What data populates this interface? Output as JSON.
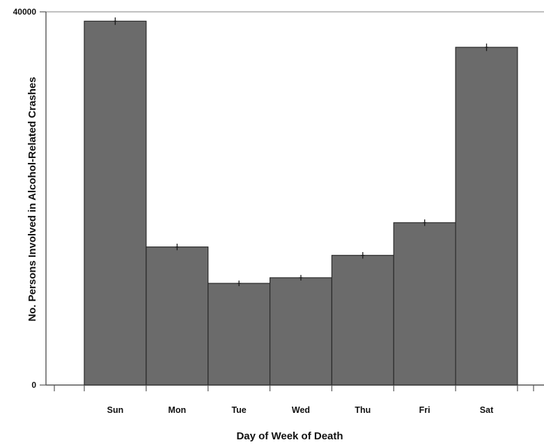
{
  "chart_data": {
    "type": "bar",
    "title": "",
    "xlabel": "Day of Week of Death",
    "ylabel": "No. Persons Involved in Alcohol-Related Crashes",
    "categories": [
      "Sun",
      "Mon",
      "Tue",
      "Wed",
      "Thu",
      "Fri",
      "Sat"
    ],
    "values": [
      39000,
      14800,
      10900,
      11500,
      13900,
      17400,
      36200
    ],
    "error_margin": [
      250,
      200,
      150,
      150,
      200,
      200,
      250
    ],
    "ylim": [
      0,
      40000
    ],
    "yticks": [
      {
        "value": 0,
        "label": "0"
      },
      {
        "value": 40000,
        "label": "40000"
      }
    ],
    "grid": false,
    "legend": "none",
    "colors": {
      "bar_fill": "#6b6b6b",
      "bar_stroke": "#2a2a2a",
      "axis": "#555555",
      "error_bar": "#1a1a1a"
    }
  }
}
